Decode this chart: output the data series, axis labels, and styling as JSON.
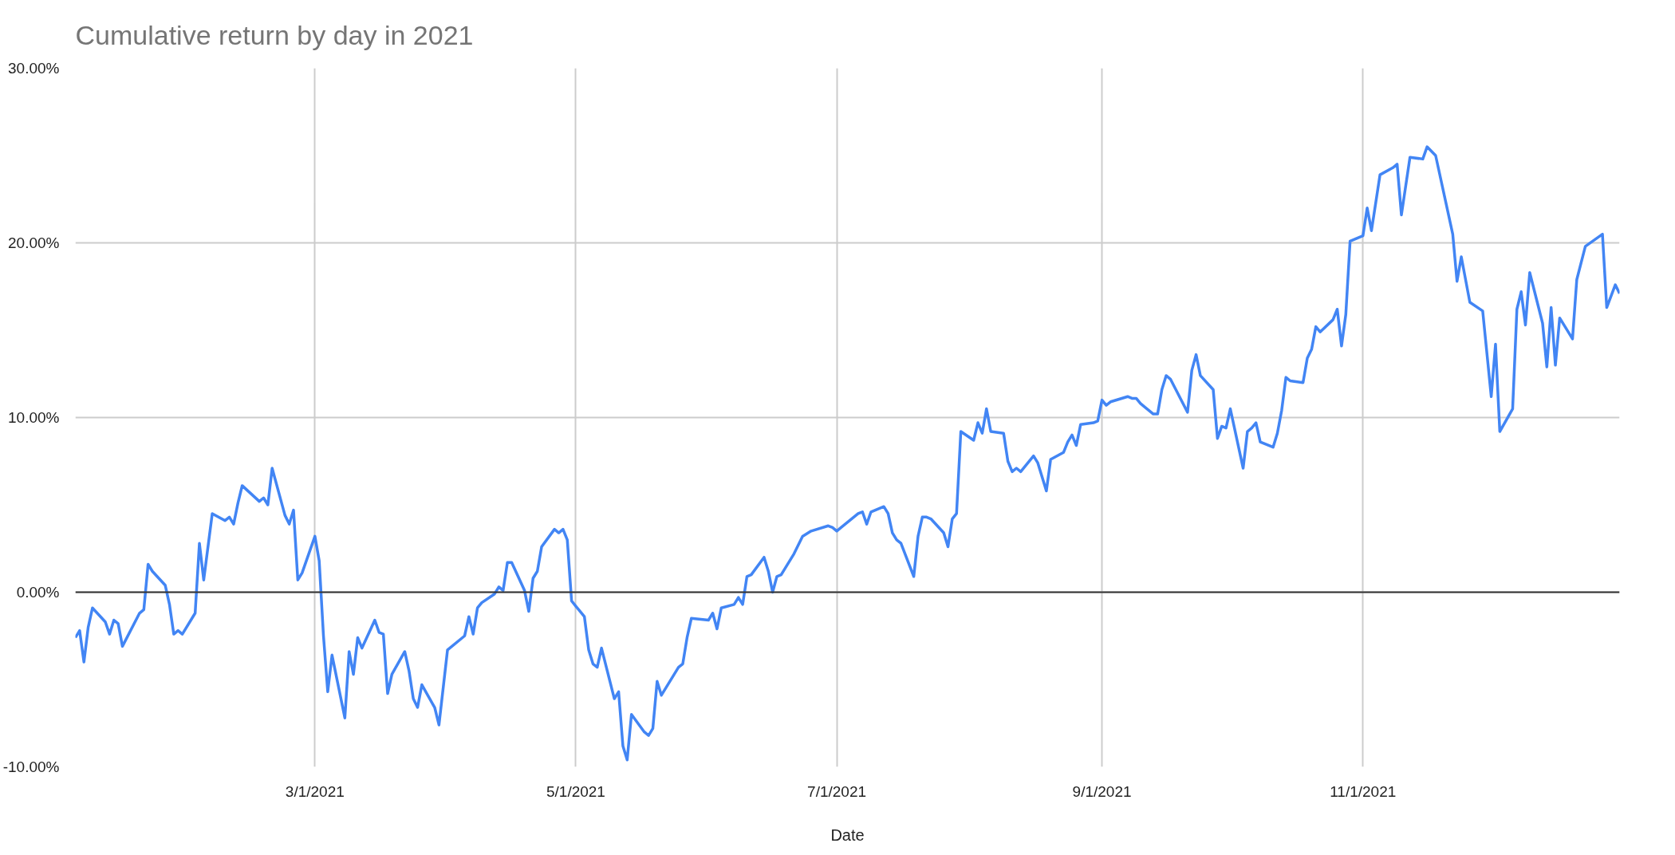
{
  "chart_data": {
    "type": "line",
    "title": "Cumulative return by day in 2021",
    "xlabel": "Date",
    "xlim": [
      "2021-01-04",
      "2021-12-31"
    ],
    "xticks": [
      {
        "value": "2021-03-01",
        "label": "3/1/2021"
      },
      {
        "value": "2021-05-01",
        "label": "5/1/2021"
      },
      {
        "value": "2021-07-01",
        "label": "7/1/2021"
      },
      {
        "value": "2021-09-01",
        "label": "9/1/2021"
      },
      {
        "value": "2021-11-01",
        "label": "11/1/2021"
      }
    ],
    "ylim": [
      -10,
      30
    ],
    "yticks": [
      {
        "value": -10,
        "label": "-10.00%"
      },
      {
        "value": 0,
        "label": "0.00%"
      },
      {
        "value": 10,
        "label": "10.00%"
      },
      {
        "value": 20,
        "label": "20.00%"
      },
      {
        "value": 30,
        "label": "30.00%"
      }
    ],
    "grid": true,
    "marker": "none",
    "line_style": "solid",
    "ref_lines": [
      {
        "axis": "y",
        "value": 0,
        "color": "#333333"
      }
    ],
    "series": [
      {
        "color": "#4285f4",
        "x": [
          "2021-01-04",
          "2021-01-05",
          "2021-01-06",
          "2021-01-07",
          "2021-01-08",
          "2021-01-11",
          "2021-01-12",
          "2021-01-13",
          "2021-01-14",
          "2021-01-15",
          "2021-01-19",
          "2021-01-20",
          "2021-01-21",
          "2021-01-22",
          "2021-01-25",
          "2021-01-26",
          "2021-01-27",
          "2021-01-28",
          "2021-01-29",
          "2021-02-01",
          "2021-02-02",
          "2021-02-03",
          "2021-02-05",
          "2021-02-08",
          "2021-02-09",
          "2021-02-10",
          "2021-02-11",
          "2021-02-12",
          "2021-02-16",
          "2021-02-17",
          "2021-02-18",
          "2021-02-19",
          "2021-02-22",
          "2021-02-23",
          "2021-02-24",
          "2021-02-25",
          "2021-02-26",
          "2021-03-01",
          "2021-03-02",
          "2021-03-03",
          "2021-03-04",
          "2021-03-05",
          "2021-03-08",
          "2021-03-09",
          "2021-03-10",
          "2021-03-11",
          "2021-03-12",
          "2021-03-15",
          "2021-03-16",
          "2021-03-17",
          "2021-03-18",
          "2021-03-19",
          "2021-03-22",
          "2021-03-23",
          "2021-03-24",
          "2021-03-25",
          "2021-03-26",
          "2021-03-29",
          "2021-03-30",
          "2021-04-01",
          "2021-04-05",
          "2021-04-06",
          "2021-04-07",
          "2021-04-08",
          "2021-04-09",
          "2021-04-12",
          "2021-04-13",
          "2021-04-14",
          "2021-04-15",
          "2021-04-16",
          "2021-04-19",
          "2021-04-20",
          "2021-04-21",
          "2021-04-22",
          "2021-04-23",
          "2021-04-26",
          "2021-04-27",
          "2021-04-28",
          "2021-04-29",
          "2021-04-30",
          "2021-05-01",
          "2021-05-03",
          "2021-05-04",
          "2021-05-05",
          "2021-05-06",
          "2021-05-07",
          "2021-05-10",
          "2021-05-11",
          "2021-05-12",
          "2021-05-13",
          "2021-05-14",
          "2021-05-17",
          "2021-05-18",
          "2021-05-19",
          "2021-05-20",
          "2021-05-21",
          "2021-05-25",
          "2021-05-26",
          "2021-05-27",
          "2021-05-28",
          "2021-06-01",
          "2021-06-02",
          "2021-06-03",
          "2021-06-04",
          "2021-06-07",
          "2021-06-08",
          "2021-06-09",
          "2021-06-10",
          "2021-06-11",
          "2021-06-14",
          "2021-06-15",
          "2021-06-16",
          "2021-06-17",
          "2021-06-18",
          "2021-06-21",
          "2021-06-23",
          "2021-06-25",
          "2021-06-29",
          "2021-06-30",
          "2021-07-01",
          "2021-07-02",
          "2021-07-06",
          "2021-07-07",
          "2021-07-08",
          "2021-07-09",
          "2021-07-12",
          "2021-07-13",
          "2021-07-14",
          "2021-07-15",
          "2021-07-16",
          "2021-07-19",
          "2021-07-20",
          "2021-07-21",
          "2021-07-22",
          "2021-07-23",
          "2021-07-26",
          "2021-07-27",
          "2021-07-28",
          "2021-07-29",
          "2021-07-30",
          "2021-08-02",
          "2021-08-03",
          "2021-08-04",
          "2021-08-05",
          "2021-08-06",
          "2021-08-09",
          "2021-08-10",
          "2021-08-11",
          "2021-08-12",
          "2021-08-13",
          "2021-08-16",
          "2021-08-17",
          "2021-08-19",
          "2021-08-20",
          "2021-08-23",
          "2021-08-24",
          "2021-08-25",
          "2021-08-26",
          "2021-08-27",
          "2021-08-30",
          "2021-08-31",
          "2021-09-01",
          "2021-09-02",
          "2021-09-03",
          "2021-09-07",
          "2021-09-08",
          "2021-09-09",
          "2021-09-10",
          "2021-09-13",
          "2021-09-14",
          "2021-09-15",
          "2021-09-16",
          "2021-09-17",
          "2021-09-21",
          "2021-09-22",
          "2021-09-23",
          "2021-09-24",
          "2021-09-27",
          "2021-09-28",
          "2021-09-29",
          "2021-09-30",
          "2021-10-01",
          "2021-10-04",
          "2021-10-05",
          "2021-10-06",
          "2021-10-07",
          "2021-10-08",
          "2021-10-11",
          "2021-10-12",
          "2021-10-13",
          "2021-10-14",
          "2021-10-15",
          "2021-10-18",
          "2021-10-19",
          "2021-10-20",
          "2021-10-21",
          "2021-10-22",
          "2021-10-25",
          "2021-10-26",
          "2021-10-27",
          "2021-10-28",
          "2021-10-29",
          "2021-11-01",
          "2021-11-02",
          "2021-11-03",
          "2021-11-05",
          "2021-11-08",
          "2021-11-09",
          "2021-11-10",
          "2021-11-12",
          "2021-11-15",
          "2021-11-16",
          "2021-11-18",
          "2021-11-22",
          "2021-11-23",
          "2021-11-24",
          "2021-11-26",
          "2021-11-29",
          "2021-12-01",
          "2021-12-02",
          "2021-12-03",
          "2021-12-06",
          "2021-12-07",
          "2021-12-08",
          "2021-12-09",
          "2021-12-10",
          "2021-12-13",
          "2021-12-14",
          "2021-12-15",
          "2021-12-16",
          "2021-12-17",
          "2021-12-20",
          "2021-12-21",
          "2021-12-23",
          "2021-12-27",
          "2021-12-28",
          "2021-12-30",
          "2021-12-31"
        ],
        "values": [
          -2.6,
          -2.2,
          -4.0,
          -2.0,
          -0.9,
          -1.7,
          -2.4,
          -1.6,
          -1.8,
          -3.1,
          -1.2,
          -1.0,
          1.6,
          1.2,
          0.4,
          -0.7,
          -2.4,
          -2.2,
          -2.4,
          -1.2,
          2.8,
          0.7,
          4.5,
          4.1,
          4.3,
          3.9,
          5.1,
          6.1,
          5.2,
          5.4,
          5.0,
          7.1,
          4.4,
          3.9,
          4.7,
          0.7,
          1.1,
          3.2,
          1.8,
          -2.5,
          -5.7,
          -3.6,
          -7.2,
          -3.4,
          -4.7,
          -2.6,
          -3.2,
          -1.6,
          -2.3,
          -2.4,
          -5.8,
          -4.7,
          -3.4,
          -4.5,
          -6.1,
          -6.6,
          -5.3,
          -6.6,
          -7.6,
          -3.3,
          -2.5,
          -1.4,
          -2.4,
          -0.9,
          -0.6,
          -0.1,
          0.3,
          0.1,
          1.7,
          1.7,
          0.1,
          -1.1,
          0.8,
          1.2,
          2.6,
          3.6,
          3.4,
          3.6,
          3.0,
          -0.5,
          -0.8,
          -1.4,
          -3.3,
          -4.1,
          -4.3,
          -3.2,
          -6.1,
          -5.7,
          -8.8,
          -9.6,
          -7.0,
          -8.0,
          -8.2,
          -7.8,
          -5.1,
          -5.9,
          -4.3,
          -4.1,
          -2.6,
          -1.5,
          -1.6,
          -1.2,
          -2.1,
          -0.9,
          -0.7,
          -0.3,
          -0.7,
          0.9,
          1.0,
          2.0,
          1.2,
          0.0,
          0.9,
          1.0,
          2.2,
          3.2,
          3.5,
          3.8,
          3.7,
          3.5,
          3.7,
          4.5,
          4.6,
          3.9,
          4.6,
          4.9,
          4.5,
          3.4,
          3.0,
          2.8,
          0.9,
          3.2,
          4.3,
          4.3,
          4.2,
          3.4,
          2.6,
          4.2,
          4.5,
          9.2,
          8.7,
          9.7,
          9.1,
          10.5,
          9.2,
          9.1,
          7.5,
          6.9,
          7.1,
          6.9,
          7.8,
          7.4,
          5.8,
          7.6,
          8.0,
          8.6,
          9.0,
          8.4,
          9.6,
          9.7,
          9.8,
          11.0,
          10.7,
          10.9,
          11.2,
          11.1,
          11.1,
          10.8,
          10.2,
          10.2,
          11.6,
          12.4,
          12.2,
          10.3,
          12.7,
          13.6,
          12.4,
          11.6,
          8.8,
          9.5,
          9.4,
          10.5,
          7.1,
          9.2,
          9.4,
          9.7,
          8.6,
          8.3,
          9.1,
          10.4,
          12.3,
          12.1,
          12.0,
          13.4,
          13.9,
          15.2,
          14.9,
          15.6,
          16.2,
          14.1,
          15.9,
          20.1,
          20.4,
          22.0,
          20.7,
          23.9,
          24.3,
          24.5,
          21.6,
          24.9,
          24.8,
          25.5,
          25.0,
          20.5,
          17.8,
          19.2,
          16.6,
          16.1,
          11.2,
          14.2,
          9.2,
          10.5,
          16.2,
          17.2,
          15.3,
          18.3,
          15.4,
          12.9,
          16.3,
          13.0,
          15.7,
          14.5,
          17.9,
          19.8,
          20.5,
          16.3,
          17.6,
          17.1
        ]
      }
    ]
  }
}
